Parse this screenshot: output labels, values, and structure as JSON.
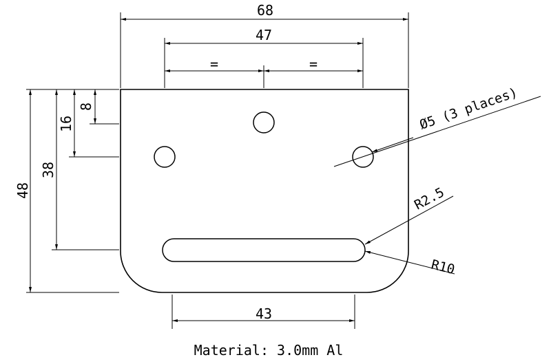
{
  "dimensions": {
    "overall_width": "68",
    "hole_spacing": "47",
    "equal_left": "=",
    "equal_right": "=",
    "height_8": "8",
    "height_16": "16",
    "height_38": "38",
    "overall_height": "48",
    "slot_length": "43"
  },
  "callouts": {
    "holes": "Ø5 (3 places)",
    "slot_radius": "R2.5",
    "corner_radius": "R10"
  },
  "material_note": "Material: 3.0mm Al",
  "colors": {
    "line": "#000000",
    "background": "#ffffff"
  }
}
